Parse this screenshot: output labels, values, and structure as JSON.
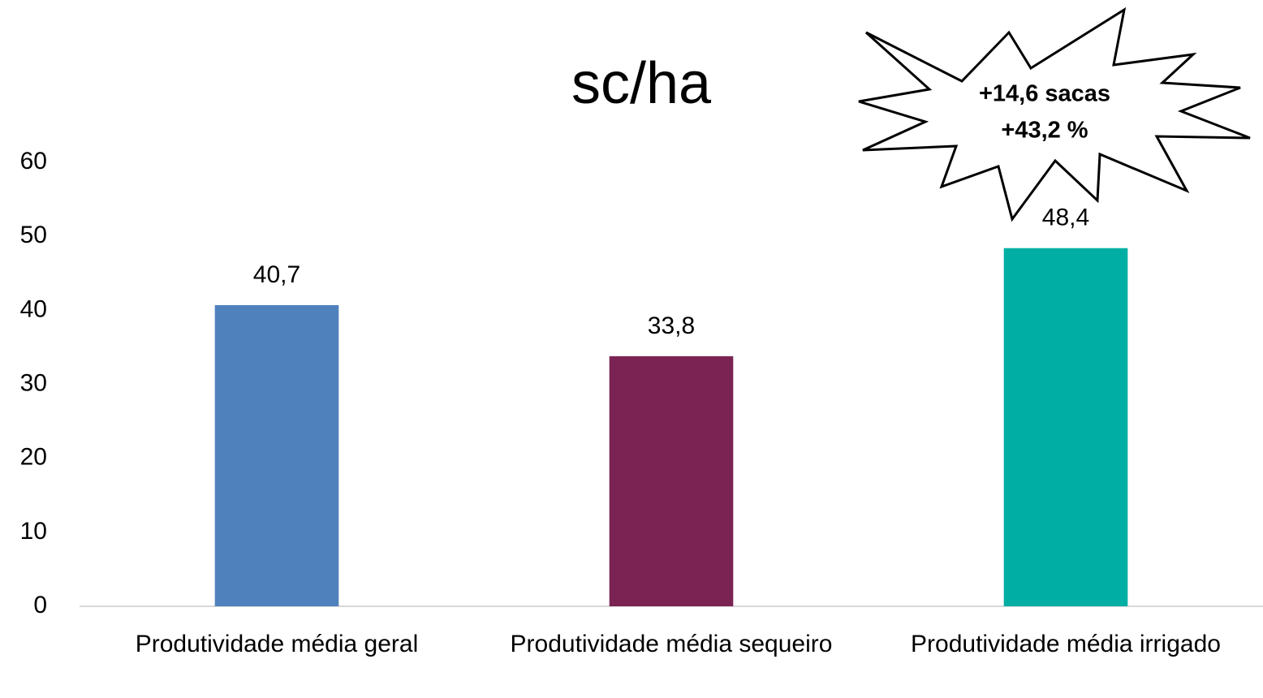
{
  "chart_data": {
    "type": "bar",
    "title": "sc/ha",
    "categories": [
      "Produtividade média geral",
      "Produtividade média sequeiro",
      "Produtividade média irrigado"
    ],
    "values": [
      40.7,
      33.8,
      48.4
    ],
    "value_labels": [
      "40,7",
      "33,8",
      "48,4"
    ],
    "colors": [
      "#4f81bd",
      "#7b2454",
      "#00aea4"
    ],
    "ylim": [
      0,
      60
    ],
    "yticks": [
      0,
      10,
      20,
      30,
      40,
      50,
      60
    ],
    "grid": false,
    "annotations": [
      "+14,6 sacas",
      "+43,2 %"
    ]
  }
}
